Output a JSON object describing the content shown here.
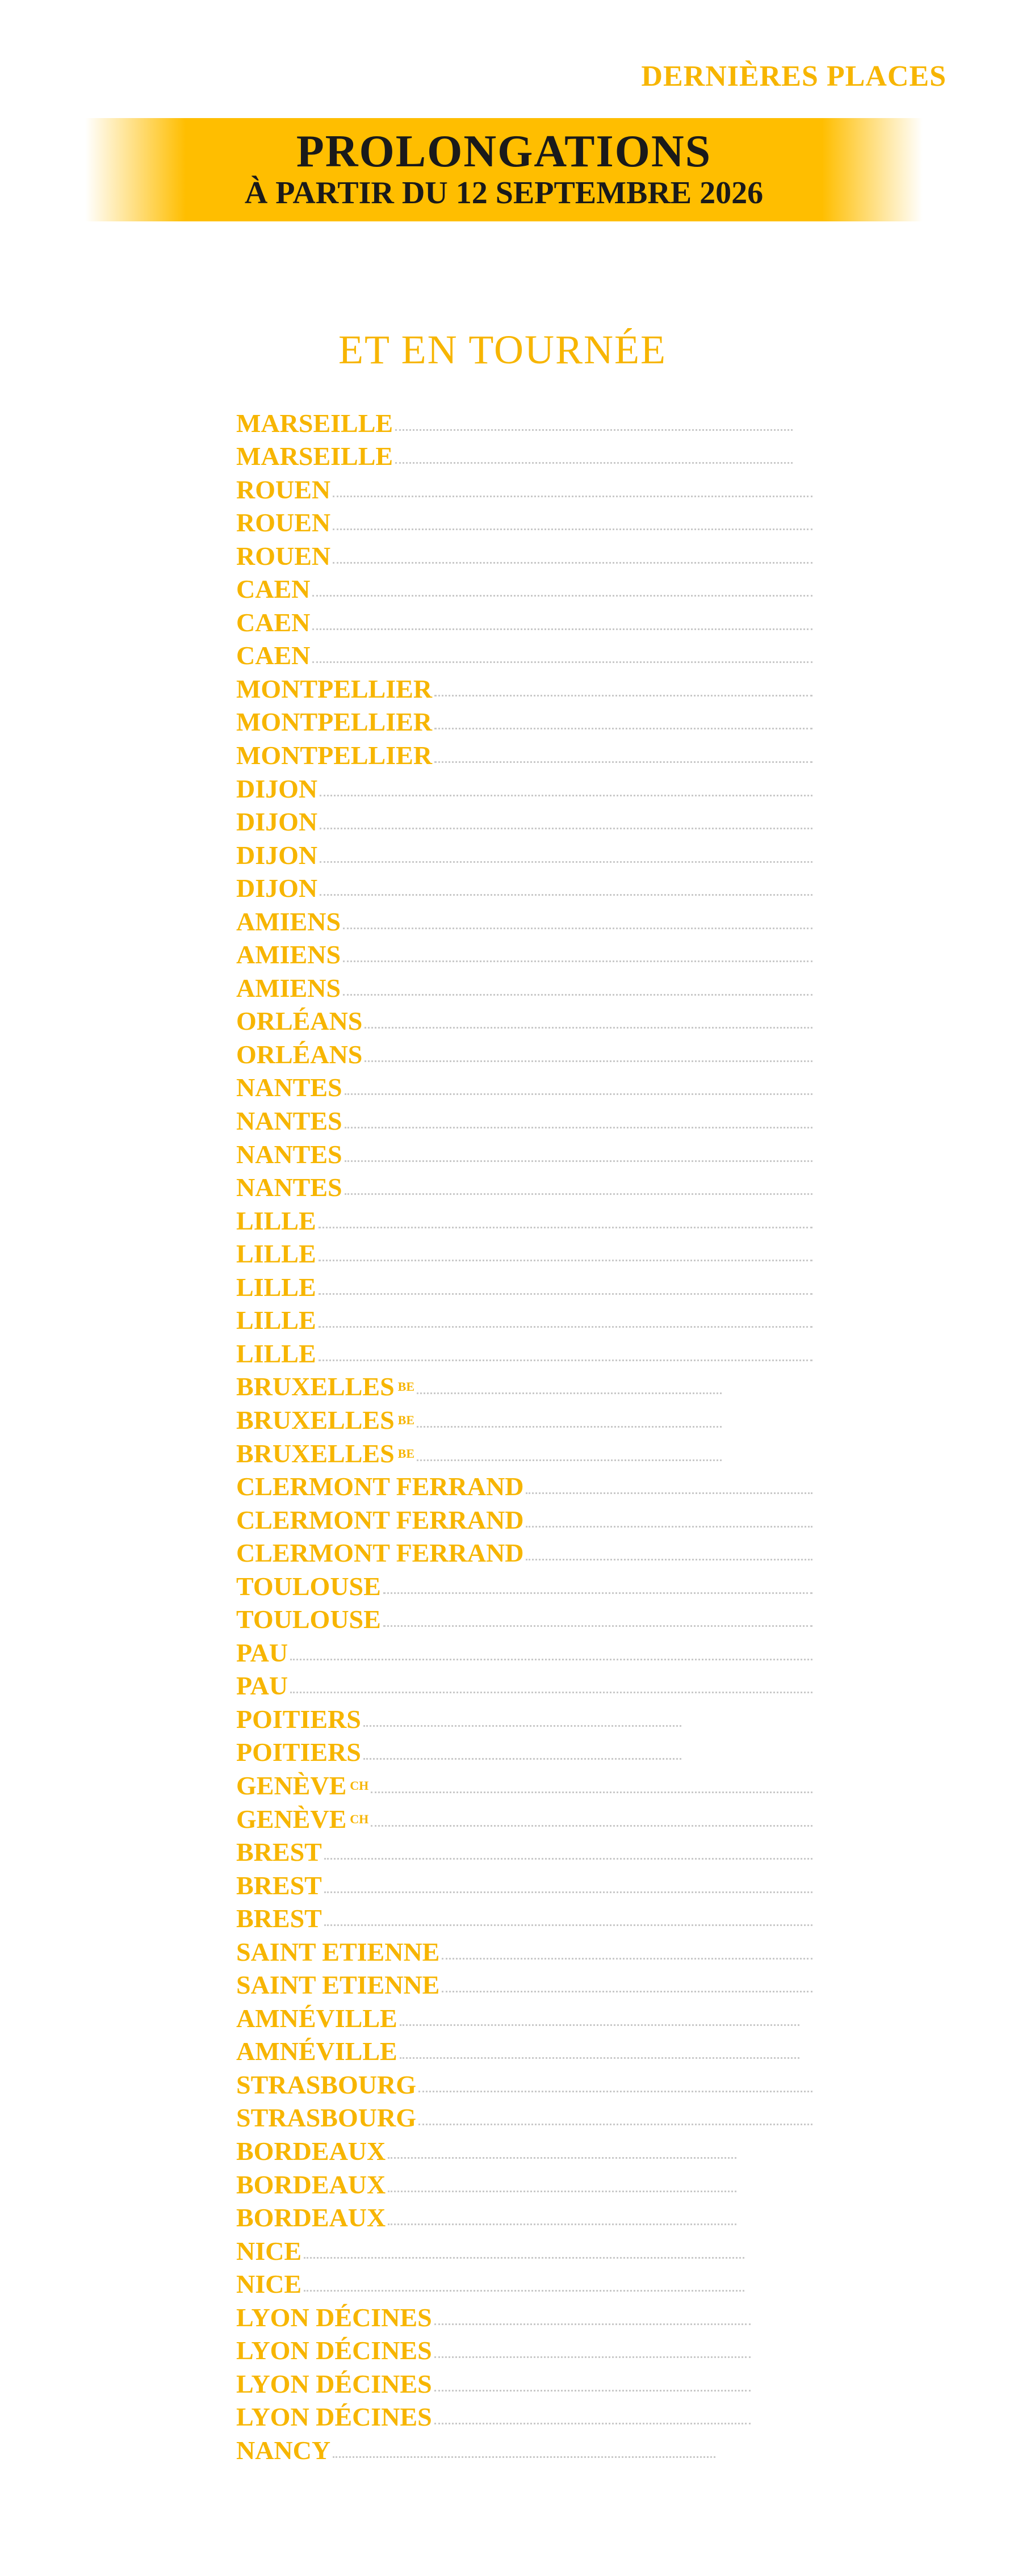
{
  "header": {
    "label": "DERNIÈRES PLACES",
    "title": "PROLONGATIONS",
    "subtitle": "À PARTIR DU 12 SEPTEMBRE 2026"
  },
  "tour": {
    "title": "ET EN TOURNÉE",
    "items": [
      {
        "city": "MARSEILLE"
      },
      {
        "city": "MARSEILLE"
      },
      {
        "city": "ROUEN"
      },
      {
        "city": "ROUEN"
      },
      {
        "city": "ROUEN"
      },
      {
        "city": "CAEN"
      },
      {
        "city": "CAEN"
      },
      {
        "city": "CAEN"
      },
      {
        "city": "MONTPELLIER"
      },
      {
        "city": "MONTPELLIER"
      },
      {
        "city": "MONTPELLIER"
      },
      {
        "city": "DIJON"
      },
      {
        "city": "DIJON"
      },
      {
        "city": "DIJON"
      },
      {
        "city": "DIJON"
      },
      {
        "city": "AMIENS"
      },
      {
        "city": "AMIENS"
      },
      {
        "city": "AMIENS"
      },
      {
        "city": "ORLÉANS"
      },
      {
        "city": "ORLÉANS"
      },
      {
        "city": "NANTES"
      },
      {
        "city": "NANTES"
      },
      {
        "city": "NANTES"
      },
      {
        "city": "NANTES"
      },
      {
        "city": "LILLE"
      },
      {
        "city": "LILLE"
      },
      {
        "city": "LILLE"
      },
      {
        "city": "LILLE"
      },
      {
        "city": "LILLE"
      },
      {
        "city": "BRUXELLES",
        "sup": "BE"
      },
      {
        "city": "BRUXELLES",
        "sup": "BE"
      },
      {
        "city": "BRUXELLES",
        "sup": "BE"
      },
      {
        "city": "CLERMONT FERRAND"
      },
      {
        "city": "CLERMONT FERRAND"
      },
      {
        "city": "CLERMONT FERRAND"
      },
      {
        "city": "TOULOUSE"
      },
      {
        "city": "TOULOUSE"
      },
      {
        "city": "PAU"
      },
      {
        "city": "PAU"
      },
      {
        "city": "POITIERS"
      },
      {
        "city": "POITIERS"
      },
      {
        "city": "GENÈVE",
        "sup": "CH"
      },
      {
        "city": "GENÈVE",
        "sup": "CH"
      },
      {
        "city": "BREST"
      },
      {
        "city": "BREST"
      },
      {
        "city": "BREST"
      },
      {
        "city": "SAINT ETIENNE"
      },
      {
        "city": "SAINT ETIENNE"
      },
      {
        "city": "AMNÉVILLE"
      },
      {
        "city": "AMNÉVILLE"
      },
      {
        "city": "STRASBOURG"
      },
      {
        "city": "STRASBOURG"
      },
      {
        "city": "BORDEAUX"
      },
      {
        "city": "BORDEAUX"
      },
      {
        "city": "BORDEAUX"
      },
      {
        "city": "NICE"
      },
      {
        "city": "NICE"
      },
      {
        "city": "LYON DÉCINES"
      },
      {
        "city": "LYON DÉCINES"
      },
      {
        "city": "LYON DÉCINES"
      },
      {
        "city": "LYON DÉCINES"
      },
      {
        "city": "NANCY"
      }
    ]
  }
}
